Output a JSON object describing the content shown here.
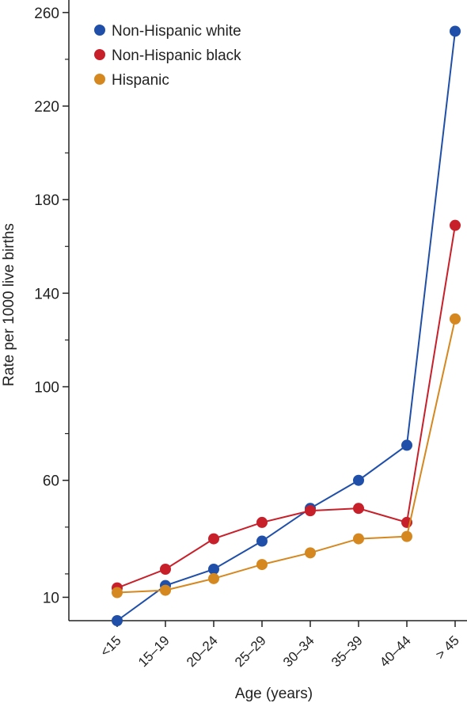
{
  "chart_data": {
    "type": "line",
    "categories": [
      "<15",
      "15–19",
      "20–24",
      "25–29",
      "30–34",
      "35–39",
      "40–44",
      "> 45"
    ],
    "series": [
      {
        "name": "Non-Hispanic white",
        "color": "#1f4fa8",
        "values": [
          0,
          15,
          22,
          34,
          48,
          60,
          75,
          252
        ]
      },
      {
        "name": "Non-Hispanic black",
        "color": "#c8202a",
        "values": [
          14,
          22,
          35,
          42,
          47,
          48,
          42,
          169
        ]
      },
      {
        "name": "Hispanic",
        "color": "#d4881f",
        "values": [
          12,
          13,
          18,
          24,
          29,
          35,
          36,
          129
        ]
      }
    ],
    "xlabel": "Age (years)",
    "ylabel": "Rate per 1000 live births",
    "yticks": [
      10,
      60,
      100,
      140,
      180,
      220,
      260
    ],
    "ylim": [
      0,
      264
    ],
    "legend": "top-left",
    "grid": false
  }
}
